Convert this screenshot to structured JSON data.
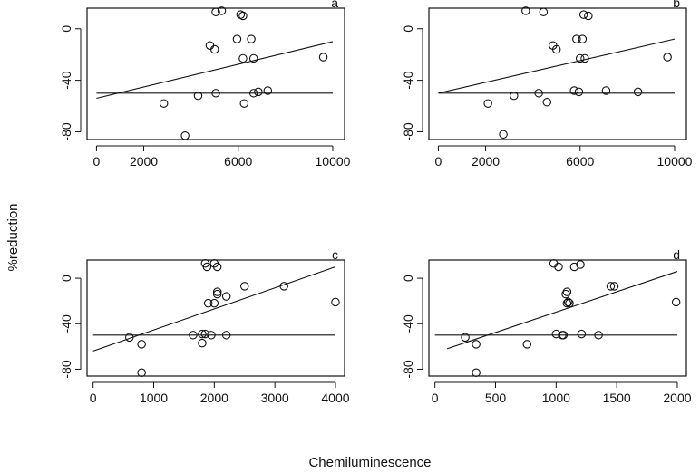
{
  "figure": {
    "ylabel": "%reduction",
    "xlabel": "Chemiluminescence"
  },
  "chart_data": [
    {
      "type": "scatter",
      "panel_label": "a",
      "xlabel": "Chemiluminescence",
      "ylabel": "%reduction",
      "xlim": [
        -400,
        10500
      ],
      "ylim": [
        -86,
        16
      ],
      "xticks": [
        0,
        2000,
        6000,
        10000
      ],
      "yticks": [
        0,
        -40,
        -80
      ],
      "grid": false,
      "points": {
        "x": [
          2850,
          3750,
          4300,
          4800,
          5000,
          5050,
          5050,
          5300,
          5950,
          6100,
          6200,
          6200,
          6250,
          6550,
          6650,
          6650,
          6850,
          7250,
          9600
        ],
        "y": [
          -58,
          -83,
          -52,
          -13,
          -16,
          13,
          -50,
          14,
          -8,
          11,
          10,
          -23,
          -58,
          -8,
          -23,
          -50,
          -49,
          -48,
          -22
        ]
      },
      "lines": [
        {
          "kind": "regression",
          "x": [
            0,
            10000
          ],
          "y": [
            -54,
            -10
          ]
        },
        {
          "kind": "reference",
          "x": [
            0,
            10000
          ],
          "y": [
            -50,
            -50
          ]
        }
      ]
    },
    {
      "type": "scatter",
      "panel_label": "b",
      "xlim": [
        -400,
        10500
      ],
      "ylim": [
        -86,
        16
      ],
      "xticks": [
        0,
        2000,
        6000,
        10000
      ],
      "yticks": [
        0,
        -40,
        -80
      ],
      "grid": false,
      "points": {
        "x": [
          2100,
          2750,
          3200,
          3700,
          4250,
          4450,
          4600,
          4850,
          5000,
          5750,
          5850,
          5950,
          6000,
          6100,
          6150,
          6200,
          6350,
          7100,
          8450,
          9700
        ],
        "y": [
          -58,
          -82,
          -52,
          14,
          -50,
          13,
          -57,
          -13,
          -16,
          -48,
          -8,
          -49,
          -23,
          -8,
          11,
          -23,
          10,
          -48,
          -49,
          -22
        ]
      },
      "lines": [
        {
          "kind": "regression",
          "x": [
            0,
            10000
          ],
          "y": [
            -50,
            -8
          ]
        },
        {
          "kind": "reference",
          "x": [
            0,
            10000
          ],
          "y": [
            -50,
            -50
          ]
        }
      ]
    },
    {
      "type": "scatter",
      "panel_label": "c",
      "xlim": [
        -100,
        4150
      ],
      "ylim": [
        -86,
        16
      ],
      "xticks": [
        0,
        1000,
        2000,
        3000,
        4000
      ],
      "yticks": [
        0,
        -40,
        -80
      ],
      "grid": false,
      "points": {
        "x": [
          600,
          800,
          800,
          1650,
          1800,
          1800,
          1850,
          1850,
          1880,
          1900,
          1950,
          2000,
          2000,
          2050,
          2050,
          2050,
          2200,
          2200,
          2500,
          3150,
          4000
        ],
        "y": [
          -52,
          -58,
          -83,
          -50,
          -57,
          -49,
          -49,
          13,
          10,
          -22,
          -50,
          -22,
          13,
          10,
          -12,
          -14,
          -50,
          -16,
          -7,
          -7,
          -21
        ]
      },
      "lines": [
        {
          "kind": "regression",
          "x": [
            0,
            4000
          ],
          "y": [
            -64,
            10
          ]
        },
        {
          "kind": "reference",
          "x": [
            0,
            4000
          ],
          "y": [
            -50,
            -50
          ]
        }
      ]
    },
    {
      "type": "scatter",
      "panel_label": "d",
      "xlim": [
        -50,
        2075
      ],
      "ylim": [
        -86,
        16
      ],
      "xticks": [
        0,
        500,
        1000,
        1500,
        2000
      ],
      "yticks": [
        0,
        -40,
        -80
      ],
      "grid": false,
      "points": {
        "x": [
          250,
          340,
          340,
          760,
          980,
          1000,
          1020,
          1050,
          1060,
          1080,
          1090,
          1090,
          1100,
          1110,
          1150,
          1200,
          1210,
          1350,
          1450,
          1480,
          1990
        ],
        "y": [
          -52,
          -58,
          -83,
          -58,
          13,
          -49,
          10,
          -50,
          -50,
          -14,
          -22,
          -12,
          -21,
          -22,
          10,
          12,
          -49,
          -50,
          -7,
          -7,
          -21
        ]
      },
      "lines": [
        {
          "kind": "regression",
          "x": [
            100,
            2000
          ],
          "y": [
            -62,
            6
          ]
        },
        {
          "kind": "reference",
          "x": [
            0,
            2000
          ],
          "y": [
            -50,
            -50
          ]
        }
      ]
    }
  ]
}
